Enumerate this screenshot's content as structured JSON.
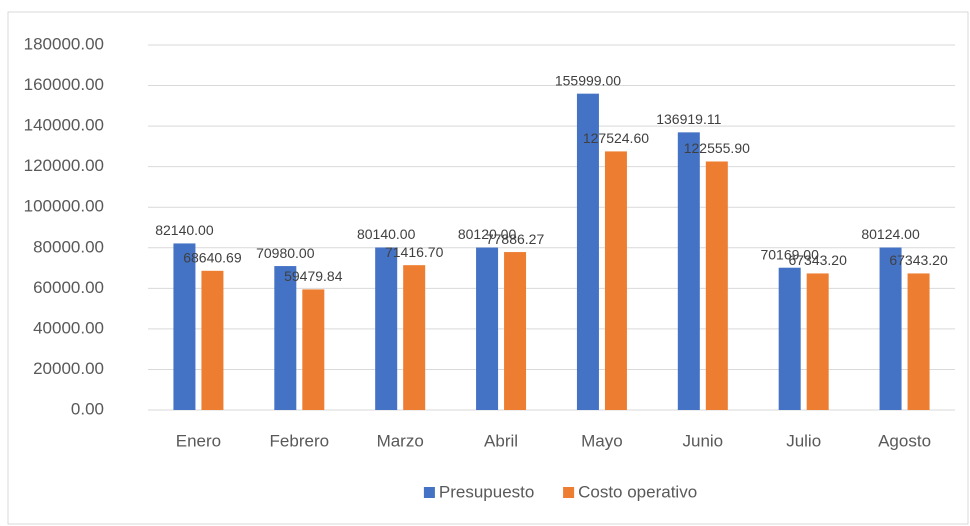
{
  "chart_data": {
    "type": "bar",
    "categories": [
      "Enero",
      "Febrero",
      "Marzo",
      "Abril",
      "Mayo",
      "Junio",
      "Julio",
      "Agosto"
    ],
    "series": [
      {
        "name": "Presupuesto",
        "color": "#4472c4",
        "values": [
          82140,
          70980,
          80140,
          80120,
          155999,
          136919.11,
          70169,
          80124
        ],
        "value_labels": [
          "82140.00",
          "70980.00",
          "80140.00",
          "80120.00",
          "155999.00",
          "136919.11",
          "70169.00",
          "80124.00"
        ]
      },
      {
        "name": "Costo operativo",
        "color": "#ed7d31",
        "values": [
          68640.69,
          59479.84,
          71416.7,
          77886.27,
          127524.6,
          122555.9,
          67343.2,
          67343.2
        ],
        "value_labels": [
          "68640.69",
          "59479.84",
          "71416.70",
          "77886.27",
          "127524.60",
          "122555.90",
          "67343.20",
          "67343.20"
        ]
      }
    ],
    "ylim": [
      0,
      180000
    ],
    "yticks": [
      {
        "value": 0,
        "label": "0.00"
      },
      {
        "value": 20000,
        "label": "20000.00"
      },
      {
        "value": 40000,
        "label": "40000.00"
      },
      {
        "value": 60000,
        "label": "60000.00"
      },
      {
        "value": 80000,
        "label": "80000.00"
      },
      {
        "value": 100000,
        "label": "100000.00"
      },
      {
        "value": 120000,
        "label": "120000.00"
      },
      {
        "value": 140000,
        "label": "140000.00"
      },
      {
        "value": 160000,
        "label": "160000.00"
      },
      {
        "value": 180000,
        "label": "180000.00"
      }
    ],
    "grid": true,
    "legend": "bottom"
  }
}
